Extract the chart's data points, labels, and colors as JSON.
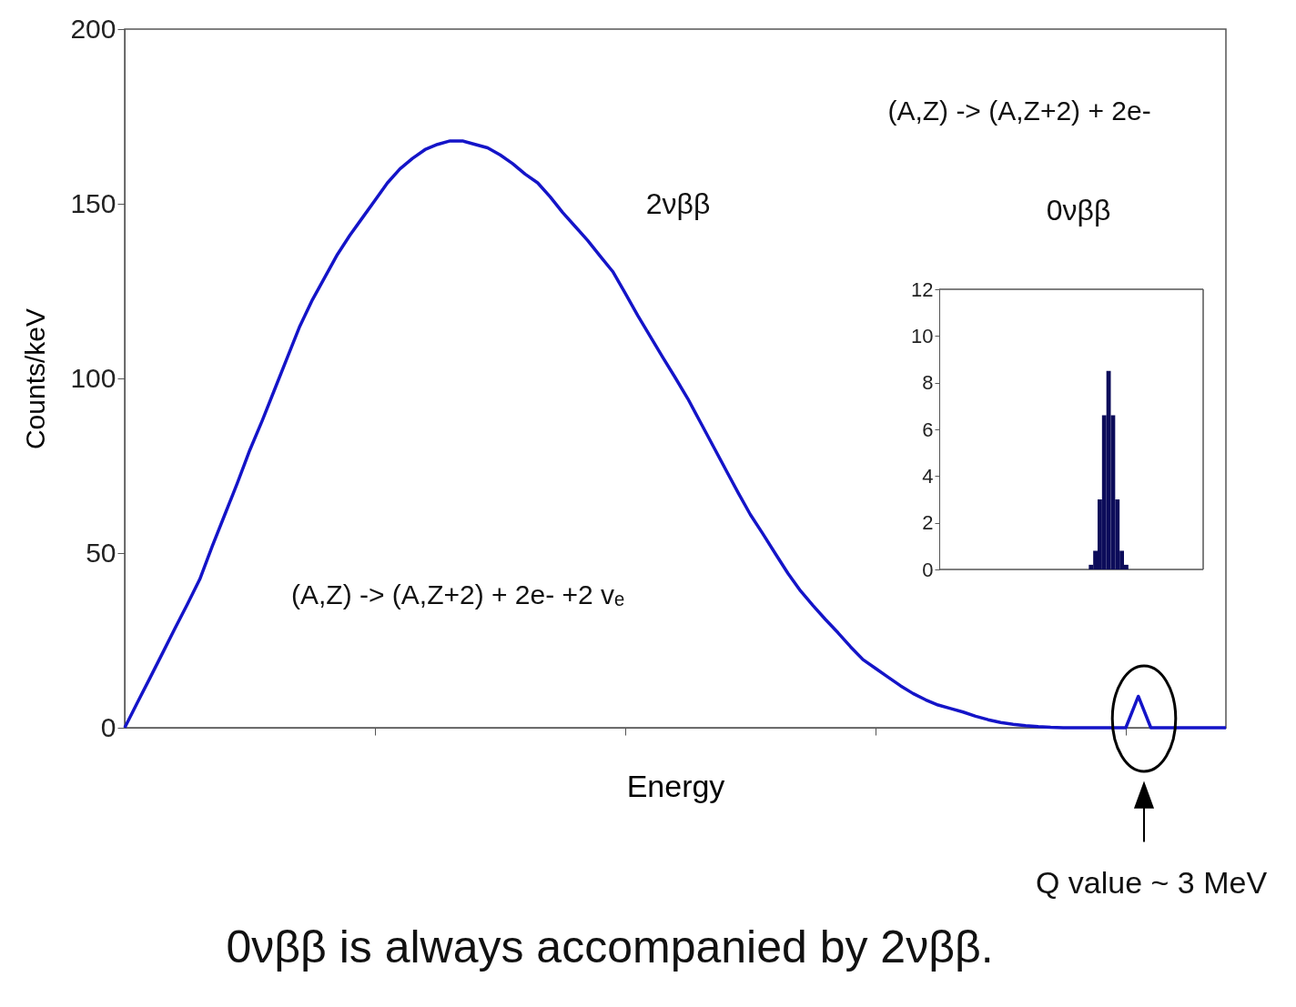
{
  "chart_data": [
    {
      "type": "line",
      "xlabel": "Energy",
      "ylabel": "Counts/keV",
      "color": "#1414c8",
      "ylim": [
        0,
        200
      ],
      "yticks": [
        0,
        50,
        100,
        150,
        200
      ],
      "grid": false,
      "categories": [
        null,
        null,
        null,
        null,
        null,
        null,
        null,
        null,
        null,
        null,
        null,
        null,
        null,
        null,
        null,
        null,
        null,
        null,
        null,
        null,
        null,
        null,
        null,
        null,
        null,
        null,
        null,
        null,
        null,
        null,
        null,
        null,
        null,
        null,
        null,
        null,
        null,
        null,
        null,
        null,
        null,
        null,
        null,
        null,
        null,
        null,
        null,
        null,
        null,
        null,
        null,
        null,
        null,
        null,
        null,
        null,
        null,
        null,
        null,
        null,
        null,
        null,
        null,
        null,
        null,
        null,
        null,
        null,
        null,
        null,
        null,
        null,
        null,
        null,
        null,
        null,
        null,
        null,
        null,
        null,
        null,
        null,
        null,
        null,
        null,
        null,
        null,
        null,
        null
      ],
      "values": [
        0,
        7.1,
        14.1,
        21.2,
        28.3,
        35.3,
        42.5,
        52,
        61,
        70,
        79.5,
        88,
        97,
        106,
        115,
        122.5,
        129,
        135.5,
        141,
        146,
        151,
        156,
        160,
        163,
        165.5,
        167,
        168,
        168,
        167,
        166,
        164,
        161.5,
        158.5,
        156,
        152,
        147.5,
        143.5,
        139.5,
        135,
        130.6,
        124.4,
        118,
        112,
        106,
        100.2,
        94.2,
        87.5,
        80.8,
        74.1,
        67.4,
        61,
        55.5,
        49.8,
        44.2,
        39.2,
        35,
        31,
        27.2,
        23.2,
        19.5,
        17,
        14.5,
        12,
        9.8,
        8,
        6.5,
        5.5,
        4.5,
        3.3,
        2.3,
        1.5,
        1,
        0.6,
        0.3,
        0.1,
        0,
        0,
        0,
        0,
        0,
        0,
        9,
        0,
        0,
        0,
        0,
        0,
        0,
        0
      ],
      "annotations": [
        "2νββ",
        "(A,Z) -> (A,Z+2) + 2e-",
        "0νββ",
        "(A,Z) -> (A,Z+2) + 2e- +2 vₑ",
        "Q value ~ 3 MeV",
        "0νββ is always accompanied by 2νββ."
      ]
    },
    {
      "type": "bar",
      "color": "#0c0c5a",
      "ylim": [
        0,
        12
      ],
      "yticks": [
        0,
        2,
        4,
        6,
        8,
        10,
        12
      ],
      "grid": false,
      "categories": [
        null,
        null,
        null,
        null,
        null,
        null,
        null,
        null,
        null,
        null,
        null,
        null,
        null,
        null,
        null,
        null,
        null,
        null,
        null,
        null,
        null,
        null,
        null,
        null,
        null,
        null,
        null,
        null,
        null,
        null,
        null,
        null,
        null,
        null,
        null,
        null,
        null,
        null,
        null,
        null,
        null,
        null,
        null,
        null,
        null,
        null,
        null,
        null,
        null,
        null,
        null,
        null,
        null,
        null,
        null,
        null,
        null,
        null,
        null,
        null
      ],
      "values": [
        0,
        0,
        0,
        0,
        0,
        0,
        0,
        0,
        0,
        0,
        0,
        0,
        0,
        0,
        0,
        0,
        0,
        0,
        0,
        0,
        0,
        0,
        0,
        0,
        0,
        0,
        0,
        0,
        0,
        0,
        0,
        0,
        0,
        0,
        0.2,
        0.8,
        3,
        6.6,
        8.5,
        6.6,
        3,
        0.8,
        0.2,
        0,
        0,
        0,
        0,
        0,
        0,
        0,
        0,
        0,
        0,
        0,
        0,
        0,
        0,
        0,
        0,
        0
      ]
    }
  ]
}
